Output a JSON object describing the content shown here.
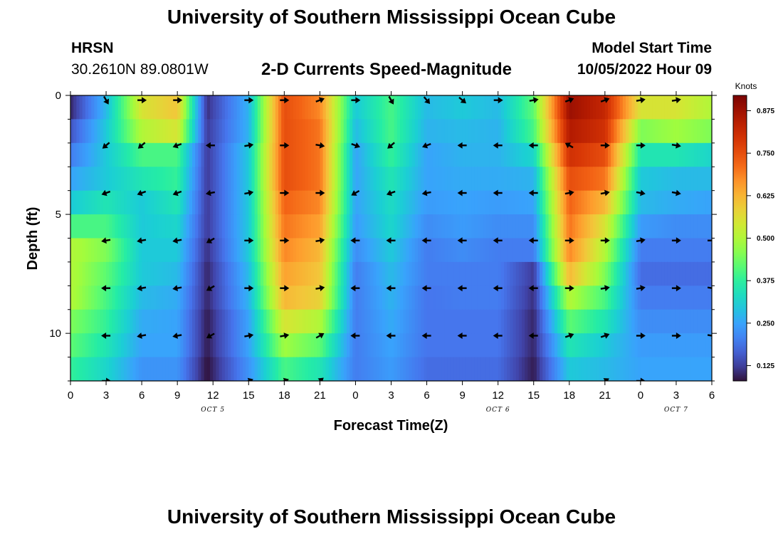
{
  "header": {
    "title": "University of Southern Mississippi Ocean Cube",
    "station": "HRSN",
    "coordinates": "30.2610N  89.0801W",
    "subtitle": "2-D Currents Speed-Magnitude",
    "model_start_label": "Model Start Time",
    "model_start_value": "10/05/2022 Hour 09"
  },
  "footer": {
    "title": "University of Southern Mississippi Ocean Cube"
  },
  "chart_data": {
    "type": "heatmap",
    "title": "2-D Currents Speed-Magnitude",
    "xlabel": "Forecast Time(Z)",
    "ylabel": "Depth (ft)",
    "x_hours_range": [
      0,
      54
    ],
    "y_range": [
      0,
      12
    ],
    "x_ticks": [
      {
        "h": 0,
        "label": "0"
      },
      {
        "h": 3,
        "label": "3"
      },
      {
        "h": 6,
        "label": "6"
      },
      {
        "h": 9,
        "label": "9"
      },
      {
        "h": 12,
        "label": "12"
      },
      {
        "h": 15,
        "label": "15"
      },
      {
        "h": 18,
        "label": "18"
      },
      {
        "h": 21,
        "label": "21"
      },
      {
        "h": 24,
        "label": "0"
      },
      {
        "h": 27,
        "label": "3"
      },
      {
        "h": 30,
        "label": "6"
      },
      {
        "h": 33,
        "label": "9"
      },
      {
        "h": 36,
        "label": "12"
      },
      {
        "h": 39,
        "label": "15"
      },
      {
        "h": 42,
        "label": "18"
      },
      {
        "h": 45,
        "label": "21"
      },
      {
        "h": 48,
        "label": "0"
      },
      {
        "h": 51,
        "label": "3"
      },
      {
        "h": 54,
        "label": "6"
      }
    ],
    "date_labels": [
      {
        "h": 12,
        "label": "OCT 5"
      },
      {
        "h": 36,
        "label": "OCT 6"
      },
      {
        "h": 51,
        "label": "OCT 7"
      }
    ],
    "y_ticks": [
      {
        "v": 0,
        "label": "0"
      },
      {
        "v": 5,
        "label": "5"
      },
      {
        "v": 10,
        "label": "10"
      }
    ],
    "colorbar": {
      "units": "Knots",
      "range": [
        0.08,
        0.92
      ],
      "ticks": [
        0.125,
        0.25,
        0.375,
        0.5,
        0.625,
        0.75,
        0.875
      ],
      "tick_labels": [
        "0.125",
        "0.250",
        "0.375",
        "0.500",
        "0.625",
        "0.750",
        "0.875"
      ]
    },
    "depth_rows": [
      0.5,
      1.5,
      2.5,
      3.5,
      4.5,
      5.5,
      6.5,
      7.5,
      8.5,
      9.5,
      10.5,
      11.5
    ],
    "time_columns": [
      0,
      3,
      6,
      9,
      11.5,
      15,
      18,
      21,
      24,
      27,
      30,
      33,
      36,
      39,
      42,
      45,
      48,
      51,
      54
    ],
    "speed_knots": [
      [
        0.1,
        0.28,
        0.55,
        0.6,
        0.11,
        0.27,
        0.75,
        0.68,
        0.3,
        0.4,
        0.28,
        0.3,
        0.28,
        0.42,
        0.88,
        0.82,
        0.55,
        0.55,
        0.5
      ],
      [
        0.15,
        0.3,
        0.5,
        0.55,
        0.12,
        0.27,
        0.75,
        0.7,
        0.28,
        0.4,
        0.27,
        0.28,
        0.27,
        0.4,
        0.85,
        0.8,
        0.45,
        0.48,
        0.45
      ],
      [
        0.2,
        0.3,
        0.4,
        0.4,
        0.12,
        0.3,
        0.75,
        0.7,
        0.25,
        0.38,
        0.25,
        0.27,
        0.27,
        0.32,
        0.8,
        0.75,
        0.35,
        0.35,
        0.32
      ],
      [
        0.25,
        0.3,
        0.35,
        0.38,
        0.12,
        0.3,
        0.75,
        0.7,
        0.25,
        0.35,
        0.25,
        0.26,
        0.26,
        0.27,
        0.75,
        0.7,
        0.3,
        0.28,
        0.28
      ],
      [
        0.3,
        0.35,
        0.3,
        0.35,
        0.12,
        0.3,
        0.72,
        0.68,
        0.25,
        0.33,
        0.24,
        0.25,
        0.24,
        0.25,
        0.72,
        0.62,
        0.28,
        0.26,
        0.25
      ],
      [
        0.4,
        0.4,
        0.3,
        0.32,
        0.12,
        0.3,
        0.7,
        0.65,
        0.24,
        0.32,
        0.22,
        0.24,
        0.22,
        0.22,
        0.7,
        0.55,
        0.24,
        0.22,
        0.22
      ],
      [
        0.5,
        0.45,
        0.3,
        0.3,
        0.11,
        0.3,
        0.68,
        0.62,
        0.22,
        0.3,
        0.2,
        0.22,
        0.2,
        0.2,
        0.68,
        0.5,
        0.2,
        0.2,
        0.2
      ],
      [
        0.5,
        0.42,
        0.3,
        0.28,
        0.1,
        0.28,
        0.65,
        0.6,
        0.2,
        0.28,
        0.2,
        0.2,
        0.2,
        0.12,
        0.62,
        0.45,
        0.18,
        0.18,
        0.18
      ],
      [
        0.5,
        0.4,
        0.28,
        0.26,
        0.1,
        0.27,
        0.62,
        0.58,
        0.2,
        0.27,
        0.19,
        0.2,
        0.2,
        0.11,
        0.5,
        0.4,
        0.2,
        0.2,
        0.2
      ],
      [
        0.45,
        0.38,
        0.26,
        0.25,
        0.09,
        0.25,
        0.55,
        0.5,
        0.2,
        0.26,
        0.19,
        0.19,
        0.19,
        0.1,
        0.42,
        0.35,
        0.22,
        0.22,
        0.22
      ],
      [
        0.42,
        0.35,
        0.25,
        0.25,
        0.09,
        0.25,
        0.48,
        0.42,
        0.2,
        0.25,
        0.19,
        0.19,
        0.19,
        0.1,
        0.35,
        0.3,
        0.24,
        0.24,
        0.24
      ],
      [
        0.38,
        0.32,
        0.23,
        0.23,
        0.08,
        0.23,
        0.4,
        0.35,
        0.2,
        0.24,
        0.18,
        0.18,
        0.18,
        0.09,
        0.3,
        0.28,
        0.25,
        0.25,
        0.25
      ]
    ],
    "vector_depths": [
      0.2,
      2.1,
      4.1,
      6.1,
      8.1,
      10.1,
      12.0
    ],
    "vector_hours": [
      3,
      6,
      9,
      11.8,
      15,
      18,
      21,
      24,
      27,
      30,
      33,
      36,
      39,
      42,
      45,
      48,
      51,
      54
    ],
    "vector_directions_deg": [
      [
        -60,
        0,
        0,
        0,
        0,
        0,
        20,
        0,
        -60,
        -50,
        -40,
        0,
        10,
        20,
        20,
        10,
        10,
        0
      ],
      [
        -140,
        -140,
        -160,
        180,
        10,
        0,
        -10,
        -20,
        -140,
        -160,
        180,
        180,
        180,
        150,
        0,
        0,
        -10,
        -10
      ],
      [
        -160,
        -160,
        -160,
        -170,
        10,
        0,
        0,
        -150,
        -160,
        -170,
        180,
        180,
        180,
        10,
        10,
        -10,
        -10,
        -20
      ],
      [
        -170,
        -170,
        -170,
        -150,
        0,
        0,
        10,
        180,
        180,
        180,
        180,
        180,
        180,
        0,
        0,
        10,
        0,
        0
      ],
      [
        -180,
        -170,
        -170,
        -150,
        0,
        0,
        10,
        180,
        180,
        180,
        180,
        180,
        180,
        0,
        10,
        10,
        0,
        -10
      ],
      [
        180,
        -170,
        -170,
        -150,
        10,
        10,
        30,
        180,
        180,
        180,
        180,
        180,
        180,
        20,
        20,
        0,
        0,
        -10
      ],
      [
        0,
        0,
        0,
        0,
        20,
        20,
        40,
        0,
        0,
        0,
        0,
        0,
        0,
        20,
        30,
        0,
        0,
        0
      ]
    ],
    "vector_visible": [
      [
        1,
        1,
        1,
        0,
        1,
        1,
        1,
        1,
        1,
        1,
        1,
        1,
        1,
        1,
        1,
        1,
        1,
        0
      ],
      [
        1,
        1,
        1,
        1,
        1,
        1,
        1,
        1,
        1,
        1,
        1,
        1,
        1,
        1,
        1,
        1,
        1,
        0
      ],
      [
        1,
        1,
        1,
        1,
        1,
        1,
        1,
        1,
        1,
        1,
        1,
        1,
        1,
        1,
        1,
        1,
        1,
        0
      ],
      [
        1,
        1,
        1,
        1,
        1,
        1,
        1,
        1,
        1,
        1,
        1,
        1,
        1,
        1,
        1,
        1,
        1,
        1
      ],
      [
        1,
        1,
        1,
        1,
        1,
        1,
        1,
        1,
        1,
        1,
        1,
        1,
        1,
        1,
        1,
        1,
        1,
        1
      ],
      [
        1,
        1,
        1,
        1,
        1,
        1,
        1,
        1,
        1,
        1,
        1,
        1,
        1,
        1,
        1,
        1,
        1,
        1
      ],
      [
        1,
        0,
        0,
        0,
        1,
        1,
        1,
        0,
        0,
        0,
        0,
        0,
        0,
        0,
        1,
        1,
        0,
        0
      ]
    ]
  }
}
